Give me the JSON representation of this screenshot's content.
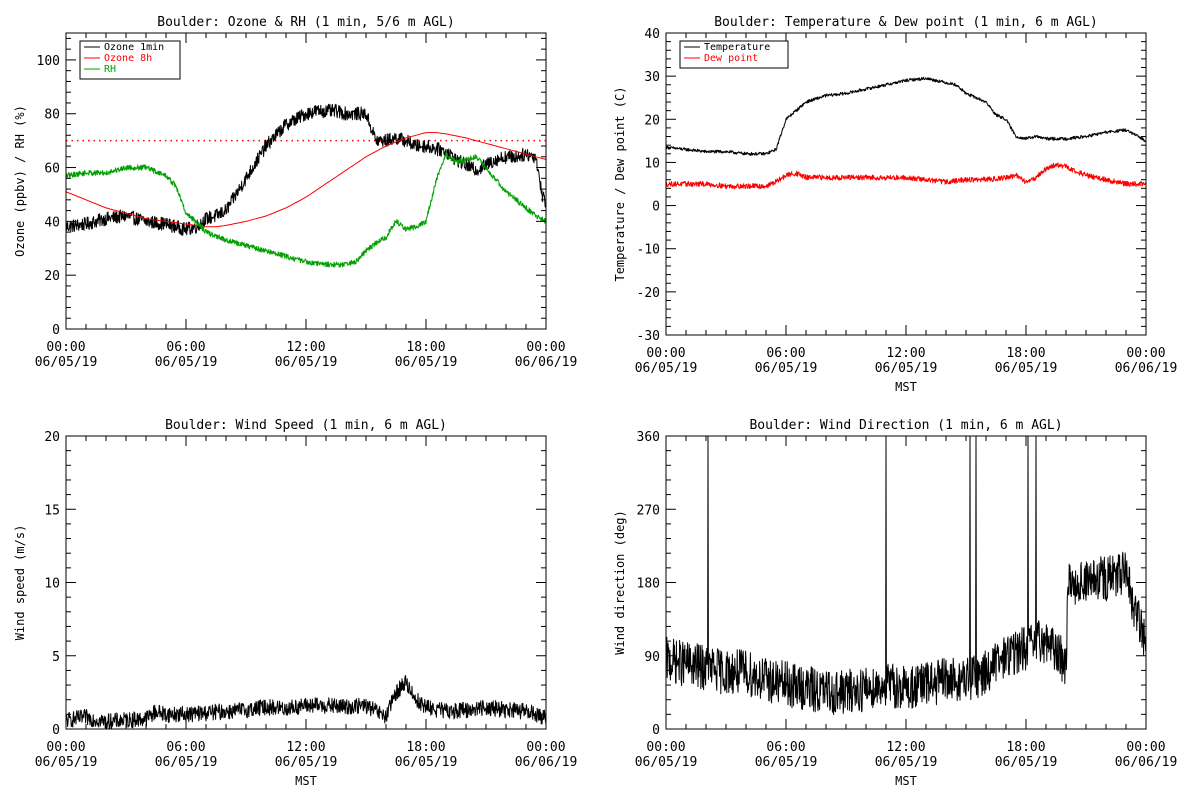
{
  "chart_data": [
    {
      "type": "line",
      "title": "Boulder: Ozone & RH (1 min, 5/6 m AGL)",
      "xlabel": "",
      "ylabel": "Ozone (ppbv) / RH (%)",
      "xlim": [
        0,
        24
      ],
      "ylim": [
        0,
        110
      ],
      "yticks": [
        0,
        20,
        40,
        60,
        80,
        100
      ],
      "xticks": [
        {
          "h": 0,
          "time": "00:00",
          "date": "06/05/19"
        },
        {
          "h": 6,
          "time": "06:00",
          "date": "06/05/19"
        },
        {
          "h": 12,
          "time": "12:00",
          "date": "06/05/19"
        },
        {
          "h": 18,
          "time": "18:00",
          "date": "06/05/19"
        },
        {
          "h": 24,
          "time": "00:00",
          "date": "06/06/19"
        }
      ],
      "legend_position": "top-left",
      "reference_line": {
        "y": 70,
        "color": "#ff0000",
        "style": "dotted"
      },
      "series": [
        {
          "name": "Ozone 1min",
          "color": "#000000",
          "noise": 2.5,
          "x": [
            0,
            1,
            2,
            3,
            4,
            5,
            5.5,
            6,
            6.5,
            7,
            7.5,
            8,
            8.5,
            9,
            9.5,
            10,
            10.5,
            11,
            11.5,
            12,
            12.5,
            13,
            13.5,
            14,
            14.5,
            15,
            15.5,
            16,
            16.5,
            17,
            17.5,
            18,
            18.5,
            19,
            19.5,
            20,
            20.5,
            21,
            21.5,
            22,
            22.5,
            23,
            23.5,
            23.8,
            24
          ],
          "y": [
            38,
            39,
            41,
            42,
            40,
            39,
            38,
            37,
            38,
            41,
            42,
            44,
            50,
            56,
            62,
            68,
            72,
            76,
            78,
            80,
            81,
            81,
            81,
            80,
            80,
            80,
            70,
            70,
            71,
            70,
            68,
            68,
            67,
            66,
            63,
            61,
            59,
            61,
            63,
            64,
            64,
            65,
            64,
            50,
            47
          ]
        },
        {
          "name": "Ozone 8h",
          "color": "#ff0000",
          "noise": 0,
          "x": [
            0,
            1,
            2,
            3,
            4,
            5,
            6,
            7,
            7.5,
            8,
            9,
            10,
            11,
            12,
            13,
            14,
            15,
            16,
            17,
            18,
            18.5,
            19,
            20,
            21,
            22,
            23,
            24
          ],
          "y": [
            51,
            48,
            45,
            43,
            41,
            40,
            39,
            38,
            38,
            38.5,
            40,
            42,
            45,
            49,
            54,
            59,
            64,
            68,
            71,
            73,
            73,
            72.5,
            71,
            69,
            67,
            65,
            63
          ]
        },
        {
          "name": "RH",
          "color": "#00a000",
          "noise": 1.0,
          "x": [
            0,
            1,
            2,
            3,
            4,
            5,
            5.5,
            6,
            6.5,
            7,
            8,
            9,
            10,
            11,
            12,
            13,
            14,
            14.5,
            15,
            15.5,
            16,
            16.5,
            17,
            17.5,
            18,
            18.5,
            19,
            19.5,
            20,
            20.5,
            21,
            22,
            23,
            23.5,
            24
          ],
          "y": [
            57,
            58,
            58,
            60,
            60,
            57,
            53,
            43,
            40,
            36,
            33,
            31,
            29,
            27,
            25,
            24,
            24,
            25,
            29,
            32,
            34,
            40,
            37,
            38,
            40,
            55,
            65,
            62,
            63,
            64,
            60,
            51,
            45,
            42,
            40
          ]
        }
      ]
    },
    {
      "type": "line",
      "title": "Boulder: Temperature & Dew point (1 min, 6 m AGL)",
      "xlabel": "MST",
      "ylabel": "Temperature / Dew point (C)",
      "xlim": [
        0,
        24
      ],
      "ylim": [
        -30,
        40
      ],
      "yticks": [
        -30,
        -20,
        -10,
        0,
        10,
        20,
        30,
        40
      ],
      "xticks": [
        {
          "h": 0,
          "time": "00:00",
          "date": "06/05/19"
        },
        {
          "h": 6,
          "time": "06:00",
          "date": "06/05/19"
        },
        {
          "h": 12,
          "time": "12:00",
          "date": "06/05/19"
        },
        {
          "h": 18,
          "time": "18:00",
          "date": "06/05/19"
        },
        {
          "h": 24,
          "time": "00:00",
          "date": "06/06/19"
        }
      ],
      "legend_position": "top-left",
      "series": [
        {
          "name": "Temperature",
          "color": "#000000",
          "noise": 0.35,
          "x": [
            0,
            1,
            2,
            3,
            4,
            5,
            5.5,
            6,
            6.5,
            7,
            8,
            9,
            10,
            11,
            12,
            13,
            14,
            14.5,
            15,
            16,
            16.5,
            17,
            17.5,
            18,
            18.5,
            19,
            20,
            21,
            22,
            23,
            24
          ],
          "y": [
            13.5,
            13,
            12.5,
            12.5,
            12,
            12,
            13,
            20,
            22,
            24,
            25.5,
            26,
            27,
            28,
            29,
            29.5,
            28.5,
            28,
            26,
            24,
            21,
            20,
            16,
            15.5,
            16,
            15.5,
            15.5,
            16,
            17,
            17.5,
            15
          ]
        },
        {
          "name": "Dew point",
          "color": "#ff0000",
          "noise": 0.6,
          "x": [
            0,
            1,
            2,
            3,
            4,
            5,
            5.5,
            6,
            6.5,
            7,
            8,
            9,
            10,
            11,
            12,
            13,
            14,
            15,
            16,
            17,
            17.5,
            18,
            18.5,
            19,
            19.5,
            20,
            20.5,
            21,
            22,
            23,
            24
          ],
          "y": [
            5,
            5,
            5,
            4.5,
            4.5,
            4.5,
            5.5,
            7,
            7.5,
            6.5,
            6.5,
            6.5,
            6.5,
            6.5,
            6.5,
            6,
            5.5,
            6,
            6,
            6.5,
            7,
            5.5,
            6.5,
            8.5,
            9.5,
            9,
            8,
            7,
            6,
            5,
            5
          ]
        }
      ]
    },
    {
      "type": "line",
      "title": "Boulder: Wind Speed (1 min, 6 m AGL)",
      "xlabel": "MST",
      "ylabel": "Wind speed (m/s)",
      "xlim": [
        0,
        24
      ],
      "ylim": [
        0,
        20
      ],
      "yticks": [
        0,
        5,
        10,
        15,
        20
      ],
      "xticks": [
        {
          "h": 0,
          "time": "00:00",
          "date": "06/05/19"
        },
        {
          "h": 6,
          "time": "06:00",
          "date": "06/05/19"
        },
        {
          "h": 12,
          "time": "12:00",
          "date": "06/05/19"
        },
        {
          "h": 18,
          "time": "18:00",
          "date": "06/05/19"
        },
        {
          "h": 24,
          "time": "00:00",
          "date": "06/06/19"
        }
      ],
      "legend_position": "none",
      "series": [
        {
          "color": "#000000",
          "noise": 0.55,
          "floor": 0,
          "x": [
            0,
            1,
            2,
            3,
            4,
            4.5,
            5,
            6,
            7,
            8,
            9,
            10,
            11,
            12,
            13,
            14,
            15,
            16,
            16.5,
            17,
            17.5,
            18,
            19,
            20,
            21,
            22,
            23,
            24
          ],
          "y": [
            0.6,
            0.8,
            0.5,
            0.6,
            0.7,
            1.2,
            1.0,
            1.0,
            1.1,
            1.2,
            1.3,
            1.5,
            1.4,
            1.6,
            1.6,
            1.5,
            1.6,
            0.8,
            2.5,
            3.2,
            2.0,
            1.5,
            1.2,
            1.3,
            1.5,
            1.3,
            1.2,
            0.8
          ]
        }
      ]
    },
    {
      "type": "line",
      "title": "Boulder: Wind Direction (1 min, 6 m AGL)",
      "xlabel": "MST",
      "ylabel": "Wind direction (deg)",
      "xlim": [
        0,
        24
      ],
      "ylim": [
        0,
        360
      ],
      "yticks": [
        0,
        90,
        180,
        270,
        360
      ],
      "xticks": [
        {
          "h": 0,
          "time": "00:00",
          "date": "06/05/19"
        },
        {
          "h": 6,
          "time": "06:00",
          "date": "06/05/19"
        },
        {
          "h": 12,
          "time": "12:00",
          "date": "06/05/19"
        },
        {
          "h": 18,
          "time": "18:00",
          "date": "06/05/19"
        },
        {
          "h": 24,
          "time": "00:00",
          "date": "06/06/19"
        }
      ],
      "legend_position": "none",
      "series": [
        {
          "color": "#000000",
          "noise": 28,
          "floor": 0,
          "ceil": 360,
          "x": [
            0,
            1,
            2,
            3,
            4,
            5,
            6,
            7,
            8,
            9,
            10,
            11,
            12,
            13,
            14,
            15,
            16,
            17,
            18,
            19,
            20,
            20.1,
            21,
            22,
            23,
            23.5,
            24
          ],
          "y": [
            85,
            80,
            75,
            70,
            70,
            60,
            55,
            50,
            45,
            45,
            50,
            55,
            50,
            55,
            60,
            60,
            70,
            90,
            100,
            110,
            80,
            180,
            180,
            185,
            190,
            140,
            110
          ],
          "spikes": [
            2.1,
            11.0,
            15.2,
            15.5,
            18.1,
            18.5
          ]
        }
      ]
    }
  ]
}
